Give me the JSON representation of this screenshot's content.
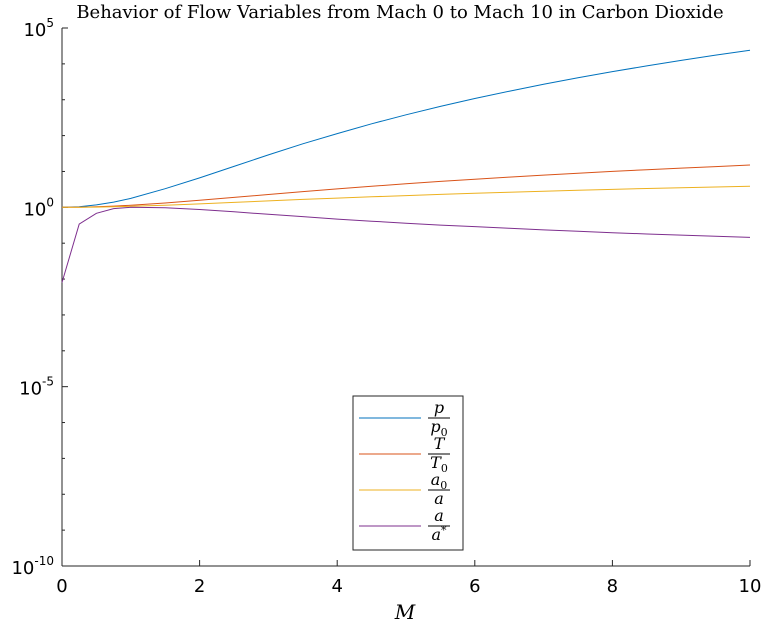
{
  "chart_data": {
    "type": "line",
    "title": "Behavior of Flow Variables from Mach 0 to Mach 10 in Carbon Dioxide",
    "xlabel": "M",
    "ylabel": "",
    "xlim": [
      0,
      10
    ],
    "ylim": [
      1e-10,
      100000.0
    ],
    "yscale": "log",
    "grid": false,
    "legend_position": "bottom-center",
    "x_ticks": [
      "0",
      "2",
      "4",
      "6",
      "8",
      "10"
    ],
    "y_ticks": [
      {
        "base": "10",
        "exp": "5",
        "value": 100000.0
      },
      {
        "base": "10",
        "exp": "0",
        "value": 1
      },
      {
        "base": "10",
        "exp": "-5",
        "value": 1e-05
      },
      {
        "base": "10",
        "exp": "-10",
        "value": 1e-10
      }
    ],
    "x": [
      0,
      0.25,
      0.5,
      0.75,
      1,
      1.5,
      2,
      2.5,
      3,
      3.5,
      4,
      4.5,
      5,
      5.5,
      6,
      6.5,
      7,
      7.5,
      8,
      8.5,
      9,
      9.5,
      10
    ],
    "series": [
      {
        "name_num": "p",
        "name_den": "p",
        "name_den_sub": "0",
        "color": "#0072BD",
        "y": [
          1.0,
          1.04,
          1.17,
          1.4,
          1.78,
          3.3,
          6.6,
          13.8,
          29,
          59,
          114,
          213,
          380,
          650,
          1080,
          1730,
          2700,
          4100,
          6100,
          8800,
          12500,
          17500,
          24000
        ]
      },
      {
        "name_num": "T",
        "name_den": "T",
        "name_den_sub": "0",
        "color": "#D95319",
        "y": [
          1.0,
          1.009,
          1.036,
          1.08,
          1.14,
          1.32,
          1.57,
          1.89,
          2.28,
          2.74,
          3.27,
          3.87,
          4.54,
          5.28,
          6.09,
          6.97,
          7.92,
          8.94,
          10.03,
          11.2,
          12.4,
          13.7,
          15.1
        ]
      },
      {
        "name_num": "a",
        "name_num_sub": "0",
        "name_den": "a",
        "color": "#EDB120",
        "y": [
          1.0,
          1.005,
          1.018,
          1.04,
          1.07,
          1.15,
          1.25,
          1.37,
          1.51,
          1.66,
          1.81,
          1.97,
          2.13,
          2.3,
          2.47,
          2.64,
          2.81,
          2.99,
          3.17,
          3.35,
          3.52,
          3.7,
          3.89
        ]
      },
      {
        "name_num": "a",
        "name_den": "a",
        "name_den_sup": "*",
        "color": "#7E2F8E",
        "y": [
          0.008,
          0.34,
          0.68,
          0.92,
          1.0,
          0.97,
          0.87,
          0.75,
          0.64,
          0.55,
          0.47,
          0.41,
          0.36,
          0.32,
          0.29,
          0.26,
          0.235,
          0.214,
          0.196,
          0.181,
          0.168,
          0.156,
          0.145
        ]
      }
    ]
  }
}
